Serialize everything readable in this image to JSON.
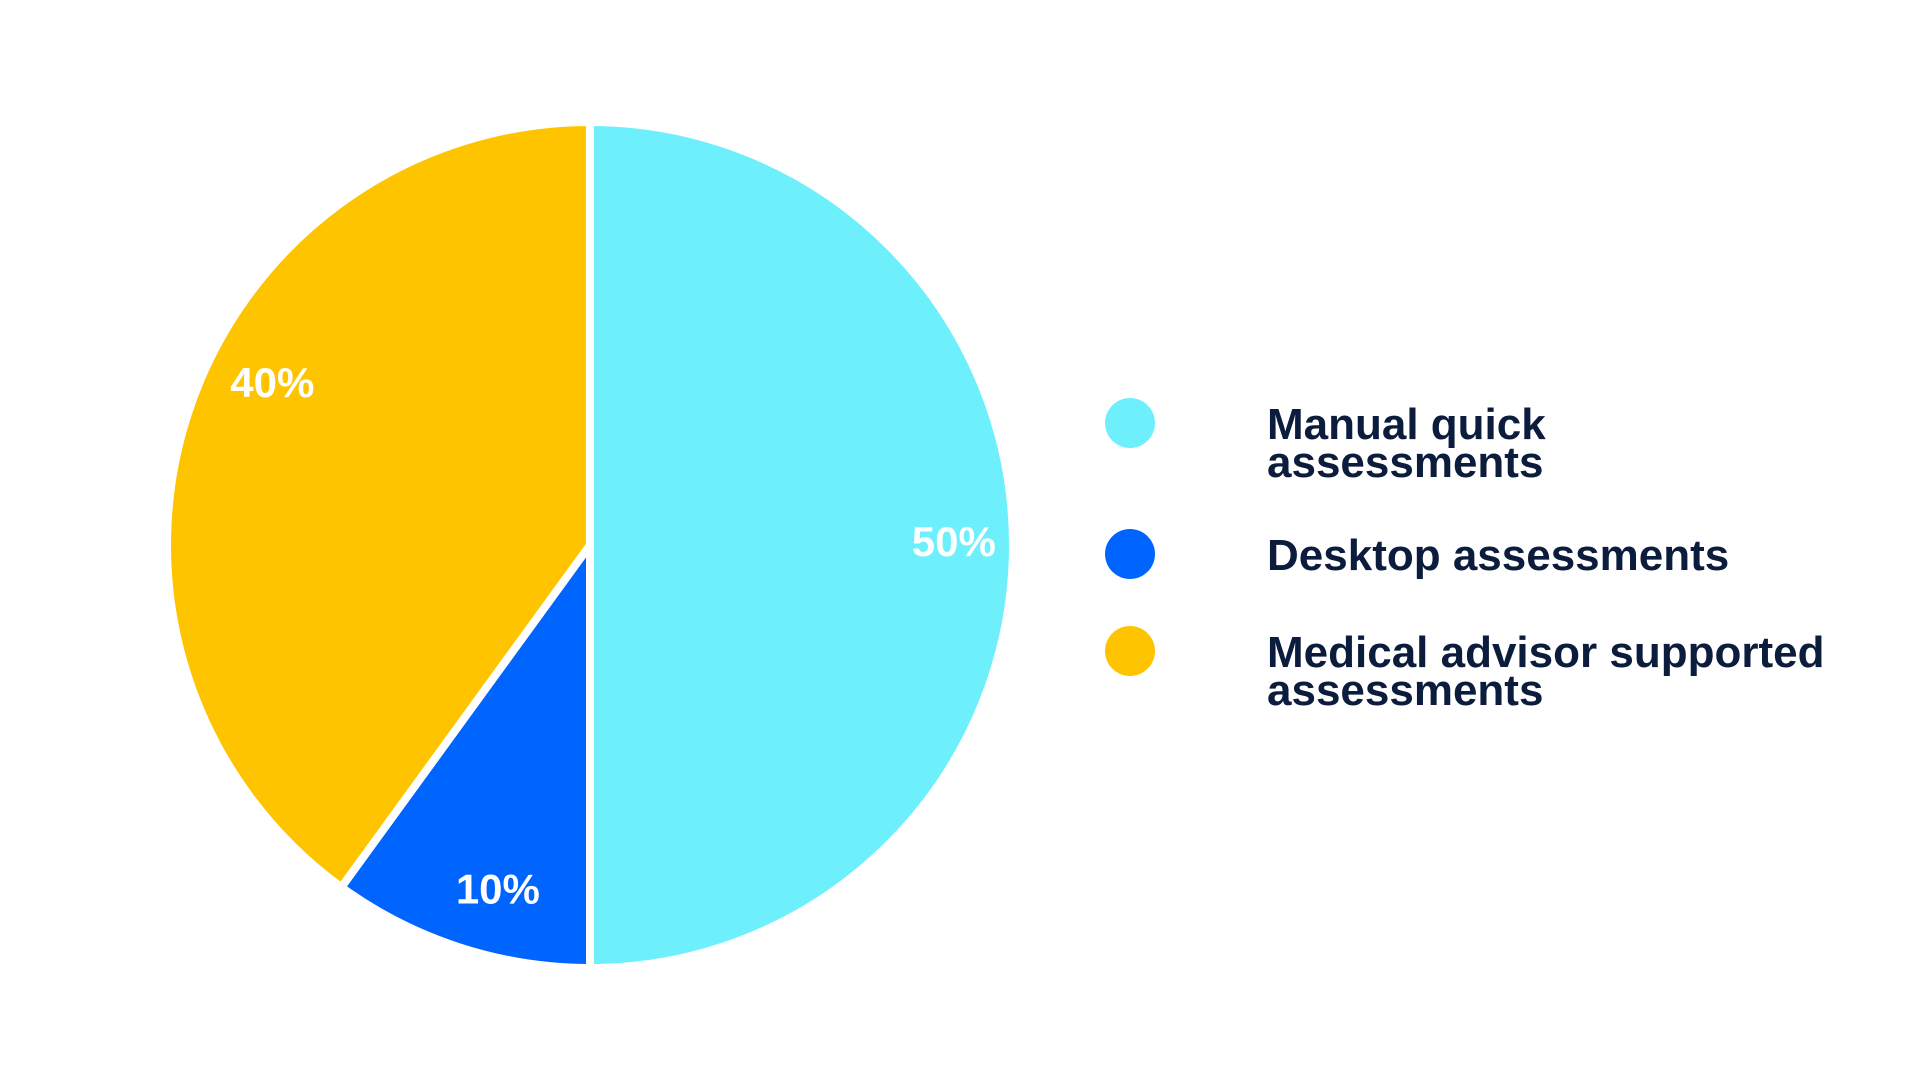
{
  "chart_data": {
    "type": "pie",
    "title": "",
    "slices": [
      {
        "label": "Manual quick assessments",
        "value": 50,
        "display": "50%",
        "color": "#6EEFFC"
      },
      {
        "label": "Desktop assessments",
        "value": 10,
        "display": "10%",
        "color": "#0064FF"
      },
      {
        "label": "Medical advisor supported assessments",
        "value": 40,
        "display": "40%",
        "color": "#FFC400"
      }
    ],
    "legend_position": "right",
    "label_color": "#FFFFFF",
    "legend_text_color": "#0B1C3D"
  }
}
